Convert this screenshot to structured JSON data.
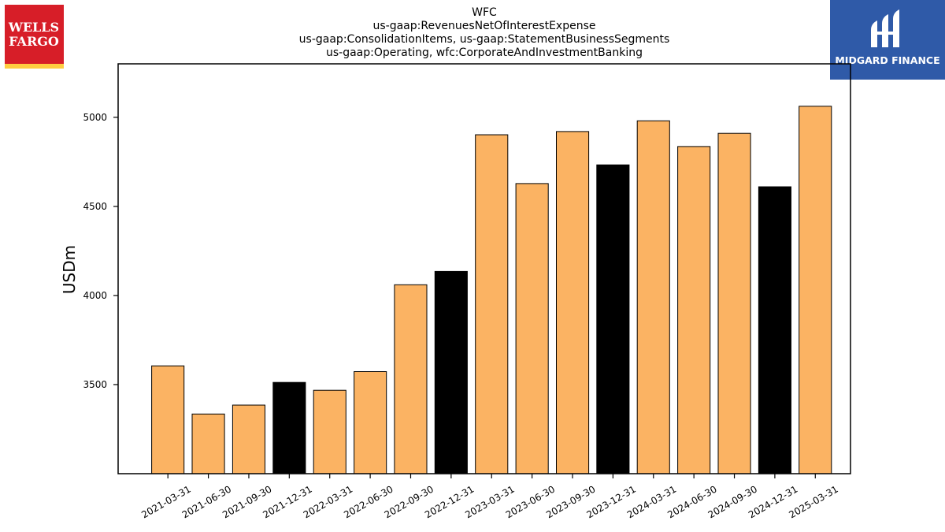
{
  "logos": {
    "left": {
      "line1": "WELLS",
      "line2": "FARGO",
      "bg": "#d71e28",
      "stripe": "#ffcd41"
    },
    "right": {
      "text": "MIDGARD FINANCE",
      "bg": "#2f5aa8"
    }
  },
  "chart_data": {
    "type": "bar",
    "title_lines": [
      "WFC",
      "us-gaap:RevenuesNetOfInterestExpense",
      "us-gaap:ConsolidationItems, us-gaap:StatementBusinessSegments",
      "us-gaap:Operating, wfc:CorporateAndInvestmentBanking"
    ],
    "ylabel": "USDm",
    "xlabel": "",
    "ylim": [
      3000,
      5300
    ],
    "yticks": [
      3500,
      4000,
      4500,
      5000
    ],
    "grid": false,
    "colors": {
      "regular": "#fbb363",
      "q4": "#000000",
      "edge": "#000000"
    },
    "categories": [
      "2021-03-31",
      "2021-06-30",
      "2021-09-30",
      "2021-12-31",
      "2022-03-31",
      "2022-06-30",
      "2022-09-30",
      "2022-12-31",
      "2023-03-31",
      "2023-06-30",
      "2023-09-30",
      "2023-12-31",
      "2024-03-31",
      "2024-06-30",
      "2024-09-30",
      "2024-12-31",
      "2025-03-31"
    ],
    "values": [
      3605,
      3335,
      3385,
      3512,
      3468,
      3573,
      4060,
      4135,
      4902,
      4628,
      4920,
      4733,
      4980,
      4836,
      4910,
      4610,
      5062
    ],
    "highlight": [
      false,
      false,
      false,
      true,
      false,
      false,
      false,
      true,
      false,
      false,
      false,
      true,
      false,
      false,
      false,
      true,
      false
    ]
  }
}
